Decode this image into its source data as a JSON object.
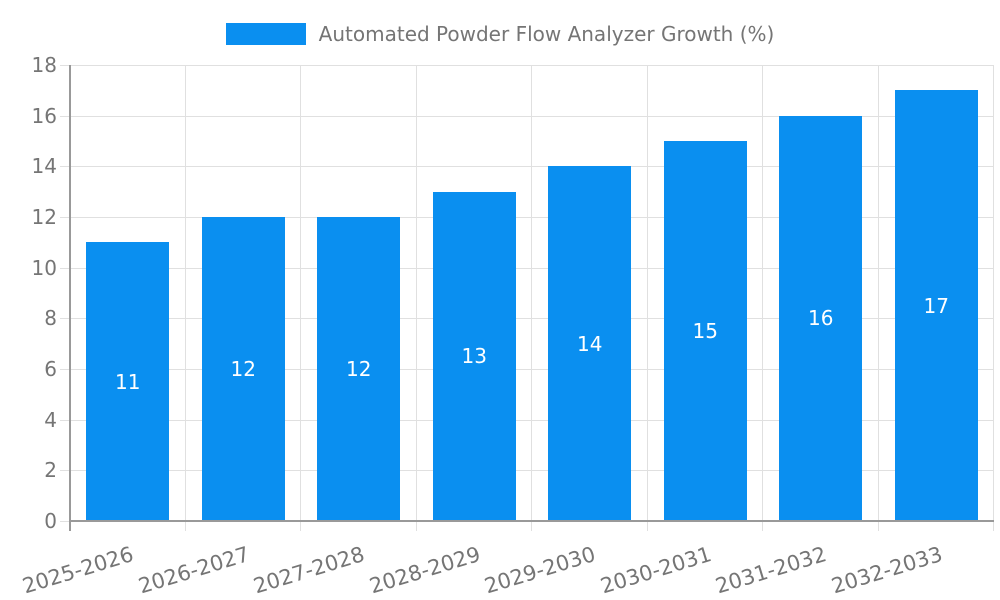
{
  "chart_data": {
    "type": "bar",
    "title": "Automated Powder Flow Analyzer Growth (%)",
    "categories": [
      "2025-2026",
      "2026-2027",
      "2027-2028",
      "2028-2029",
      "2029-2030",
      "2030-2031",
      "2031-2032",
      "2032-2033"
    ],
    "values": [
      11,
      12,
      12,
      13,
      14,
      15,
      16,
      17
    ],
    "ylim": [
      0,
      18
    ],
    "yticks": [
      0,
      2,
      4,
      6,
      8,
      10,
      12,
      14,
      16,
      18
    ],
    "grid": true,
    "legend_position": "top-center",
    "bar_value_labels_inside": true,
    "x_tick_rotation_deg": -17,
    "colors": {
      "bar": "#0a8ff0",
      "grid": "#e0e0e0",
      "axis": "#999999",
      "tick_label": "#757575",
      "legend_label": "#757575",
      "bar_label": "#ffffff",
      "background": "#ffffff"
    }
  }
}
